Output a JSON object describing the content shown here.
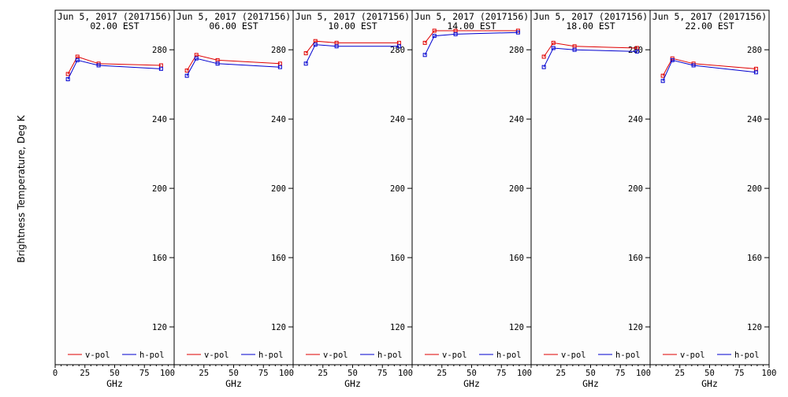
{
  "y_axis_label": "Brightness Temperature, Deg K",
  "legend": {
    "v": "v-pol",
    "h": "h-pol"
  },
  "colors": {
    "v": "#e00000",
    "h": "#0000d0",
    "frame": "#000000",
    "bg": "#fdfdfd"
  },
  "chart_data": [
    {
      "type": "line",
      "title": "Jun  5, 2017 (2017156)",
      "subtitle": "02.00 EST",
      "xlabel": "GHz",
      "ylabel": "Brightness Temperature, Deg K",
      "xlim": [
        0,
        100
      ],
      "ylim": [
        100,
        296
      ],
      "x_ticks": [
        0,
        25,
        50,
        75,
        100
      ],
      "y_ticks": [
        120,
        160,
        200,
        240,
        280
      ],
      "x": [
        10.7,
        18.7,
        36.5,
        89.0
      ],
      "series": [
        {
          "name": "v-pol",
          "values": [
            266,
            276,
            272,
            271
          ]
        },
        {
          "name": "h-pol",
          "values": [
            263,
            274,
            271,
            269
          ]
        }
      ]
    },
    {
      "type": "line",
      "title": "Jun  5, 2017 (2017156)",
      "subtitle": "06.00 EST",
      "xlabel": "GHz",
      "xlim": [
        0,
        100
      ],
      "ylim": [
        100,
        296
      ],
      "x_ticks": [
        0,
        25,
        50,
        75,
        100
      ],
      "y_ticks": [
        120,
        160,
        200,
        240,
        280
      ],
      "x": [
        10.7,
        18.7,
        36.5,
        89.0
      ],
      "series": [
        {
          "name": "v-pol",
          "values": [
            268,
            277,
            274,
            272
          ]
        },
        {
          "name": "h-pol",
          "values": [
            265,
            275,
            272,
            270
          ]
        }
      ]
    },
    {
      "type": "line",
      "title": "Jun  5, 2017 (2017156)",
      "subtitle": "10.00 EST",
      "xlabel": "GHz",
      "xlim": [
        0,
        100
      ],
      "ylim": [
        100,
        296
      ],
      "x_ticks": [
        0,
        25,
        50,
        75,
        100
      ],
      "y_ticks": [
        120,
        160,
        200,
        240,
        280
      ],
      "x": [
        10.7,
        18.7,
        36.5,
        89.0
      ],
      "series": [
        {
          "name": "v-pol",
          "values": [
            278,
            285,
            284,
            284
          ]
        },
        {
          "name": "h-pol",
          "values": [
            272,
            283,
            282,
            282
          ]
        }
      ]
    },
    {
      "type": "line",
      "title": "Jun  5, 2017 (2017156)",
      "subtitle": "14.00 EST",
      "xlabel": "GHz",
      "xlim": [
        0,
        100
      ],
      "ylim": [
        100,
        296
      ],
      "x_ticks": [
        0,
        25,
        50,
        75,
        100
      ],
      "y_ticks": [
        120,
        160,
        200,
        240,
        280
      ],
      "x": [
        10.7,
        18.7,
        36.5,
        89.0
      ],
      "series": [
        {
          "name": "v-pol",
          "values": [
            284,
            291,
            291,
            291
          ]
        },
        {
          "name": "h-pol",
          "values": [
            277,
            288,
            289,
            290
          ]
        }
      ]
    },
    {
      "type": "line",
      "title": "Jun  5, 2017 (2017156)",
      "subtitle": "18.00 EST",
      "xlabel": "GHz",
      "xlim": [
        0,
        100
      ],
      "ylim": [
        100,
        296
      ],
      "x_ticks": [
        0,
        25,
        50,
        75,
        100
      ],
      "y_ticks": [
        120,
        160,
        200,
        240,
        280
      ],
      "x": [
        10.7,
        18.7,
        36.5,
        89.0
      ],
      "series": [
        {
          "name": "v-pol",
          "values": [
            276,
            284,
            282,
            281
          ]
        },
        {
          "name": "h-pol",
          "values": [
            270,
            281,
            280,
            279
          ]
        }
      ]
    },
    {
      "type": "line",
      "title": "Jun  5, 2017 (2017156)",
      "subtitle": "22.00 EST",
      "xlabel": "GHz",
      "xlim": [
        0,
        100
      ],
      "ylim": [
        100,
        296
      ],
      "x_ticks": [
        0,
        25,
        50,
        75,
        100
      ],
      "y_ticks": [
        120,
        160,
        200,
        240,
        280
      ],
      "x": [
        10.7,
        18.7,
        36.5,
        89.0
      ],
      "series": [
        {
          "name": "v-pol",
          "values": [
            265,
            275,
            272,
            269
          ]
        },
        {
          "name": "h-pol",
          "values": [
            262,
            274,
            271,
            267
          ]
        }
      ]
    }
  ]
}
